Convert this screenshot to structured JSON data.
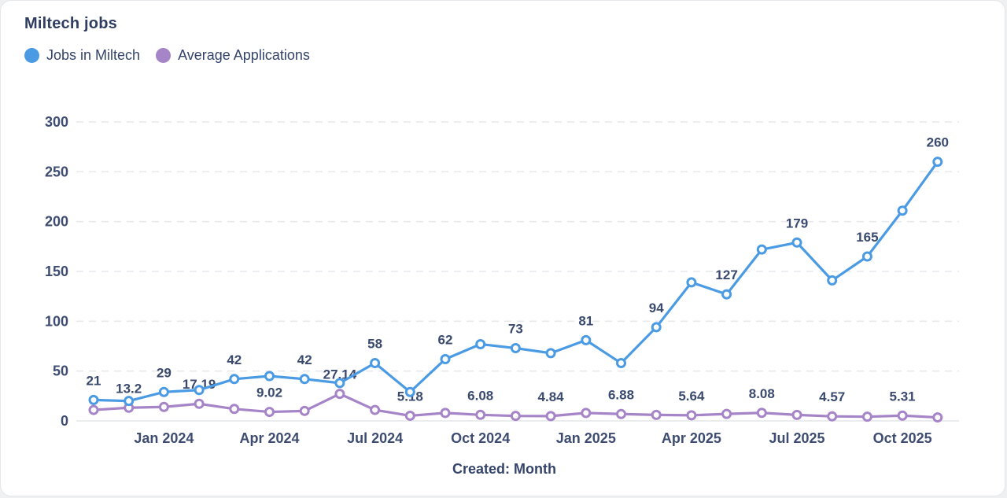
{
  "card": {
    "title": "Miltech jobs"
  },
  "chart_data": {
    "type": "line",
    "title": "Miltech jobs",
    "xlabel": "Created: Month",
    "ylabel": "",
    "ylim": [
      0,
      300
    ],
    "yticks": [
      0,
      50,
      100,
      150,
      200,
      250,
      300
    ],
    "grid": "horizontal-dashed",
    "legend_position": "top-left",
    "x": [
      "Nov 2023",
      "Dec 2023",
      "Jan 2024",
      "Feb 2024",
      "Mar 2024",
      "Apr 2024",
      "May 2024",
      "Jun 2024",
      "Jul 2024",
      "Aug 2024",
      "Sep 2024",
      "Oct 2024",
      "Nov 2024",
      "Dec 2024",
      "Jan 2025",
      "Feb 2025",
      "Mar 2025",
      "Apr 2025",
      "May 2025",
      "Jun 2025",
      "Jul 2025",
      "Aug 2025",
      "Sep 2025",
      "Oct 2025",
      "Nov 2025"
    ],
    "xtick_indices": [
      2,
      5,
      8,
      11,
      14,
      17,
      20,
      23
    ],
    "series": [
      {
        "name": "Jobs in Miltech",
        "color": "#4a9be4",
        "values": [
          21,
          20,
          29,
          31,
          42,
          45,
          42,
          38,
          58,
          29,
          62,
          77,
          73,
          68,
          81,
          58,
          94,
          139,
          127,
          172,
          179,
          141,
          165,
          211,
          260
        ],
        "labels": [
          "21",
          null,
          "29",
          null,
          "42",
          null,
          "42",
          null,
          "58",
          null,
          "62",
          null,
          "73",
          null,
          "81",
          null,
          "94",
          null,
          "127",
          null,
          "179",
          null,
          "165",
          null,
          "260"
        ]
      },
      {
        "name": "Average Applications",
        "color": "#a684c8",
        "values": [
          11,
          13.2,
          14,
          17.19,
          12,
          9.02,
          10,
          27.14,
          11,
          5.18,
          8,
          6.08,
          5,
          4.84,
          8,
          6.88,
          6,
          5.64,
          7,
          8.08,
          6,
          4.57,
          4.2,
          5.31,
          3.5
        ],
        "labels": [
          null,
          "13.2",
          null,
          "17.19",
          null,
          "9.02",
          null,
          "27.14",
          null,
          "5.18",
          null,
          "6.08",
          null,
          "4.84",
          null,
          "6.88",
          null,
          "5.64",
          null,
          "8.08",
          null,
          "4.57",
          null,
          "5.31",
          null
        ]
      }
    ]
  }
}
